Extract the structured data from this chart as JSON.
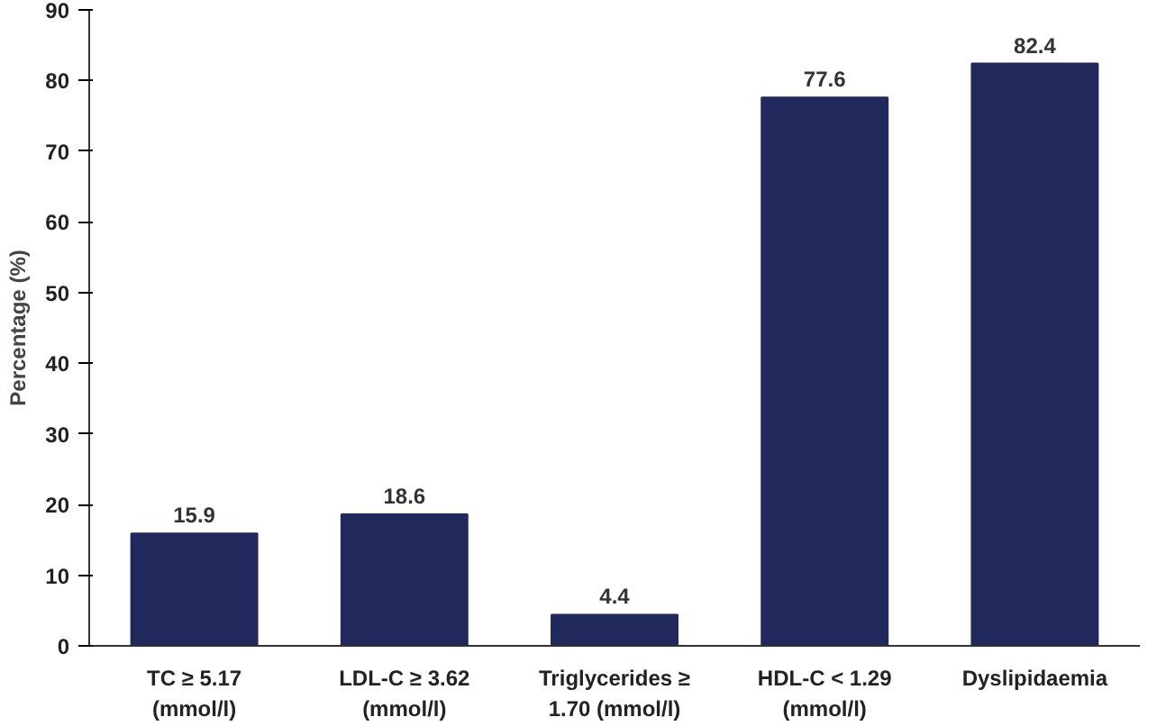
{
  "chart_data": {
    "type": "bar",
    "ylabel": "Percentage (%)",
    "categories": [
      "TC ≥ 5.17\n(mmol/l)",
      "LDL-C ≥ 3.62\n(mmol/l)",
      "Triglycerides ≥\n1.70 (mmol/l)",
      "HDL-C < 1.29\n(mmol/l)",
      "Dyslipidaemia"
    ],
    "values": [
      15.9,
      18.6,
      4.4,
      77.6,
      82.4
    ],
    "color": "#20285c",
    "ylim": [
      0,
      90
    ],
    "yticks": [
      0,
      10,
      20,
      30,
      40,
      50,
      60,
      70,
      80,
      90
    ],
    "data_labels": true,
    "grid": false
  }
}
